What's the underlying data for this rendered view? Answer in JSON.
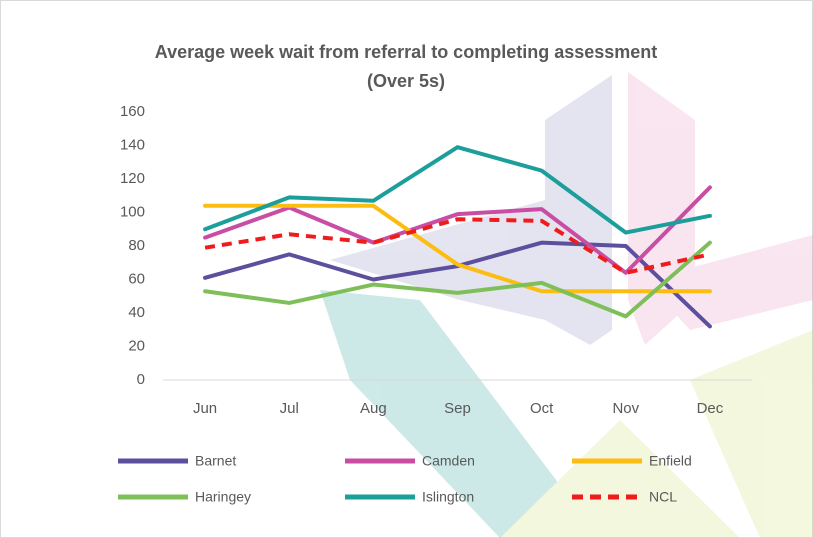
{
  "chart_data": {
    "type": "line",
    "title": [
      "Average week wait from referral to completing assessment",
      "(Over 5s)"
    ],
    "categories": [
      "Jun",
      "Jul",
      "Aug",
      "Sep",
      "Oct",
      "Nov",
      "Dec"
    ],
    "ylim": [
      0,
      160
    ],
    "yticks": [
      0,
      20,
      40,
      60,
      80,
      100,
      120,
      140,
      160
    ],
    "grid": false,
    "series": [
      {
        "name": "Barnet",
        "color": "#5b4f9e",
        "dashed": false,
        "values": [
          61,
          75,
          60,
          68,
          82,
          80,
          32
        ]
      },
      {
        "name": "Camden",
        "color": "#c94ea3",
        "dashed": false,
        "values": [
          85,
          103,
          82,
          99,
          102,
          64,
          115
        ]
      },
      {
        "name": "Enfield",
        "color": "#fbbd10",
        "dashed": false,
        "values": [
          104,
          104,
          104,
          69,
          53,
          53,
          53
        ]
      },
      {
        "name": "Haringey",
        "color": "#7fbf5a",
        "dashed": false,
        "values": [
          53,
          46,
          57,
          52,
          58,
          38,
          82
        ]
      },
      {
        "name": "Islington",
        "color": "#1c9e9a",
        "dashed": false,
        "values": [
          90,
          109,
          107,
          139,
          125,
          88,
          98
        ]
      },
      {
        "name": "NCL",
        "color": "#ee1c1c",
        "dashed": true,
        "values": [
          79,
          87,
          82,
          96,
          95,
          64,
          75
        ]
      }
    ]
  }
}
